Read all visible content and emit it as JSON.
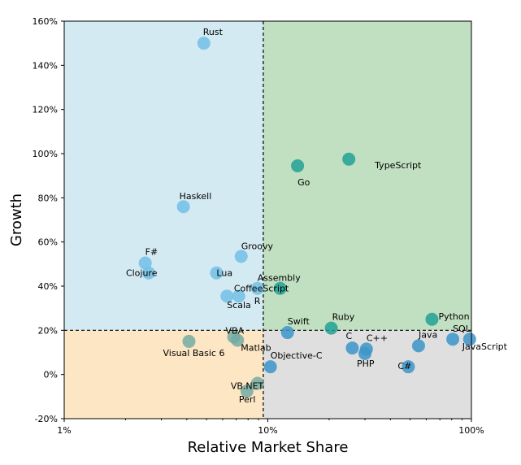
{
  "chart_data": {
    "type": "scatter",
    "title": "",
    "xlabel": "Relative Market Share",
    "ylabel": "Growth",
    "xscale": "log",
    "xlim": [
      1,
      100
    ],
    "ylim": [
      -20,
      160
    ],
    "x_ticks": [
      {
        "value": 1,
        "label": "1%"
      },
      {
        "value": 10,
        "label": "10%"
      },
      {
        "value": 100,
        "label": "100%"
      }
    ],
    "y_ticks": [
      {
        "value": -20,
        "label": "-20%"
      },
      {
        "value": 0,
        "label": "0%"
      },
      {
        "value": 20,
        "label": "20%"
      },
      {
        "value": 40,
        "label": "40%"
      },
      {
        "value": 60,
        "label": "60%"
      },
      {
        "value": 80,
        "label": "80%"
      },
      {
        "value": 100,
        "label": "100%"
      },
      {
        "value": 120,
        "label": "120%"
      },
      {
        "value": 140,
        "label": "140%"
      },
      {
        "value": 160,
        "label": "160%"
      }
    ],
    "divider_x": 9.5,
    "divider_y": 20,
    "quadrant_colors": {
      "top_left": "#d4eaf2",
      "top_right": "#c1e0c1",
      "bottom_left": "#fde6c3",
      "bottom_right": "#dfdfdf"
    },
    "point_colors": {
      "top_left": "#72c0e6",
      "top_right": "#21a095",
      "bottom_left": "#74aaa3",
      "bottom_right": "#3c95c9"
    },
    "grid": false,
    "points": [
      {
        "label": "Rust",
        "x": 4.85,
        "y": 150,
        "quadrant": "top_left"
      },
      {
        "label": "Haskell",
        "x": 3.85,
        "y": 76,
        "quadrant": "top_left"
      },
      {
        "label": "F#",
        "x": 2.5,
        "y": 50.5,
        "quadrant": "top_left"
      },
      {
        "label": "Clojure",
        "x": 2.6,
        "y": 46,
        "quadrant": "top_left"
      },
      {
        "label": "Groovy",
        "x": 7.4,
        "y": 53.5,
        "quadrant": "top_left"
      },
      {
        "label": "Lua",
        "x": 5.6,
        "y": 46,
        "quadrant": "top_left"
      },
      {
        "label": "CoffeeScript",
        "x": 8.9,
        "y": 39,
        "quadrant": "top_left"
      },
      {
        "label": "Scala",
        "x": 6.3,
        "y": 35.5,
        "quadrant": "top_left"
      },
      {
        "label": "R",
        "x": 7.2,
        "y": 35.5,
        "quadrant": "top_left"
      },
      {
        "label": "Go",
        "x": 14,
        "y": 94.5,
        "quadrant": "top_right"
      },
      {
        "label": "TypeScript",
        "x": 25,
        "y": 97.5,
        "quadrant": "top_right"
      },
      {
        "label": "Assembly",
        "x": 11.5,
        "y": 39,
        "quadrant": "top_right"
      },
      {
        "label": "Ruby",
        "x": 20.5,
        "y": 21,
        "quadrant": "top_right"
      },
      {
        "label": "Python",
        "x": 64,
        "y": 25,
        "quadrant": "top_right"
      },
      {
        "label": "VBA",
        "x": 6.8,
        "y": 17,
        "quadrant": "bottom_left"
      },
      {
        "label": "Visual Basic 6",
        "x": 4.1,
        "y": 15,
        "quadrant": "bottom_left"
      },
      {
        "label": "Matlab",
        "x": 7.1,
        "y": 15.5,
        "quadrant": "bottom_left"
      },
      {
        "label": "VB.NET",
        "x": 8.9,
        "y": -4,
        "quadrant": "bottom_left"
      },
      {
        "label": "Perl",
        "x": 7.9,
        "y": -7.5,
        "quadrant": "bottom_left"
      },
      {
        "label": "Swift",
        "x": 12.5,
        "y": 19,
        "quadrant": "bottom_right"
      },
      {
        "label": "Objective-C",
        "x": 10.3,
        "y": 3.5,
        "quadrant": "bottom_right"
      },
      {
        "label": "C",
        "x": 26,
        "y": 12,
        "quadrant": "bottom_right"
      },
      {
        "label": "C++",
        "x": 30.5,
        "y": 11.5,
        "quadrant": "bottom_right"
      },
      {
        "label": "PHP",
        "x": 30,
        "y": 9.5,
        "quadrant": "bottom_right"
      },
      {
        "label": "C#",
        "x": 49,
        "y": 3.5,
        "quadrant": "bottom_right"
      },
      {
        "label": "Java",
        "x": 55,
        "y": 13,
        "quadrant": "bottom_right"
      },
      {
        "label": "SQL",
        "x": 81,
        "y": 16,
        "quadrant": "bottom_right"
      },
      {
        "label": "JavaScript",
        "x": 98,
        "y": 16,
        "quadrant": "bottom_right"
      }
    ]
  }
}
